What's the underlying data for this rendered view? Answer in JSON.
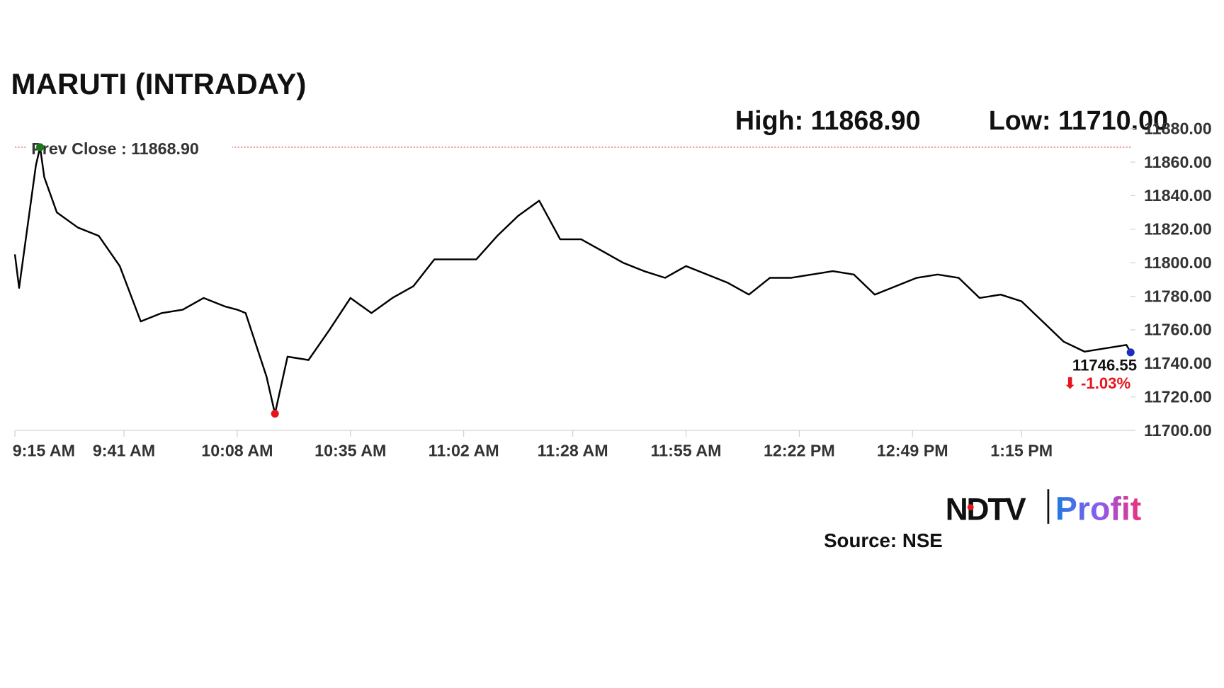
{
  "chart_data": {
    "type": "line",
    "title": "MARUTI (INTRADAY)",
    "high_label": "High: 11868.90",
    "low_label": "Low: 11710.00",
    "prev_close_label": "Prev Close : 11868.90",
    "prev_close": 11868.9,
    "prev_close_color": "#d9534f",
    "last_value_label": "11746.55",
    "change_label": "⬇ -1.03%",
    "change_color": "#e8141c",
    "high_color": "#1a7a1a",
    "low_color": "#e8141c",
    "last_color": "#1a2fbf",
    "x": [
      "9:15 AM",
      "9:16 AM",
      "9:20 AM",
      "9:21 AM",
      "9:22 AM",
      "9:25 AM",
      "9:30 AM",
      "9:35 AM",
      "9:40 AM",
      "9:45 AM",
      "9:50 AM",
      "9:55 AM",
      "10:00 AM",
      "10:05 AM",
      "10:08 AM",
      "10:10 AM",
      "10:15 AM",
      "10:17 AM",
      "10:20 AM",
      "10:25 AM",
      "10:30 AM",
      "10:35 AM",
      "10:40 AM",
      "10:45 AM",
      "10:50 AM",
      "10:55 AM",
      "11:00 AM",
      "11:05 AM",
      "11:10 AM",
      "11:15 AM",
      "11:20 AM",
      "11:25 AM",
      "11:30 AM",
      "11:35 AM",
      "11:40 AM",
      "11:45 AM",
      "11:50 AM",
      "11:55 AM",
      "12:00 PM",
      "12:05 PM",
      "12:10 PM",
      "12:15 PM",
      "12:20 PM",
      "12:25 PM",
      "12:30 PM",
      "12:35 PM",
      "12:40 PM",
      "12:45 PM",
      "12:50 PM",
      "12:55 PM",
      "1:00 PM",
      "1:05 PM",
      "1:10 PM",
      "1:15 PM",
      "1:20 PM",
      "1:25 PM",
      "1:30 PM",
      "1:35 PM",
      "1:40 PM",
      "1:41 PM"
    ],
    "series": [
      {
        "name": "MARUTI",
        "color": "#000000",
        "values": [
          11805,
          11785,
          11858,
          11868.9,
          11851,
          11830,
          11821,
          11816,
          11798,
          11765,
          11770,
          11772,
          11779,
          11774,
          11772,
          11770,
          11732,
          11710,
          11744,
          11742,
          11760,
          11779,
          11770,
          11779,
          11786,
          11802,
          11802,
          11802,
          11816,
          11828,
          11837,
          11814,
          11814,
          11807,
          11800,
          11795,
          11791,
          11798,
          11793,
          11788,
          11781,
          11791,
          11791,
          11793,
          11795,
          11793,
          11781,
          11786,
          11791,
          11793,
          11791,
          11779,
          11781,
          11777,
          11765,
          11753,
          11747,
          11749,
          11751,
          11746.55
        ]
      }
    ],
    "xlim": [
      "9:15 AM",
      "1:41 PM"
    ],
    "xticks": [
      "9:15 AM",
      "9:41 AM",
      "10:08 AM",
      "10:35 AM",
      "11:02 AM",
      "11:28 AM",
      "11:55 AM",
      "12:22 PM",
      "12:49 PM",
      "1:15 PM"
    ],
    "ylim": [
      11700,
      11880
    ],
    "yticks": [
      {
        "value": 11700,
        "label": "11700.00"
      },
      {
        "value": 11720,
        "label": "11720.00"
      },
      {
        "value": 11740,
        "label": "11740.00"
      },
      {
        "value": 11760,
        "label": "11760.00"
      },
      {
        "value": 11780,
        "label": "11780.00"
      },
      {
        "value": 11800,
        "label": "11800.00"
      },
      {
        "value": 11820,
        "label": "11820.00"
      },
      {
        "value": 11840,
        "label": "11840.00"
      },
      {
        "value": 11860,
        "label": "11860.00"
      },
      {
        "value": 11880,
        "label": "11880.00"
      }
    ],
    "grid": false
  },
  "logo": {
    "brand": "NDTV",
    "product": "Profit"
  },
  "source": "Source: NSE"
}
